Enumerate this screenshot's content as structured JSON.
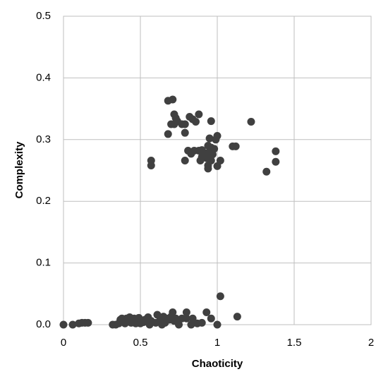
{
  "chart_data": {
    "type": "scatter",
    "x_label": "Chaoticity",
    "y_label": "Complexity",
    "color": "#404040",
    "grid": true,
    "xlim": [
      0,
      2
    ],
    "ylim": [
      0,
      0.5
    ],
    "xticks": [
      0,
      0.5,
      1,
      1.5,
      2
    ],
    "yticks": [
      {
        "value": 0,
        "label": "0.0"
      },
      0.1,
      0.2,
      0.3,
      0.4,
      0.5
    ],
    "x": [
      0.68,
      0.71,
      0.72,
      0.7,
      0.73,
      0.74,
      0.72,
      0.77,
      0.79,
      0.79,
      0.68,
      0.82,
      0.84,
      0.86,
      0.88,
      0.96,
      1.22,
      0.95,
      0.99,
      1.0,
      0.94,
      0.96,
      0.98,
      1.1,
      1.12,
      0.81,
      0.83,
      0.85,
      0.88,
      0.9,
      0.92,
      0.95,
      0.97,
      0.9,
      0.93,
      0.79,
      0.89,
      0.96,
      1.02,
      0.94,
      0.94,
      1.0,
      0.57,
      0.57,
      1.38,
      1.38,
      1.32,
      0,
      0.06,
      0.1,
      0.12,
      0.14,
      0.16,
      0.32,
      0.34,
      0.36,
      0.37,
      0.38,
      0.39,
      0.4,
      0.41,
      0.42,
      0.43,
      0.44,
      0.45,
      0.46,
      0.47,
      0.48,
      0.49,
      0.5,
      0.52,
      0.53,
      0.55,
      0.56,
      0.57,
      0.6,
      0.61,
      0.63,
      0.65,
      0.66,
      0.67,
      0.69,
      0.7,
      0.71,
      0.72,
      0.73,
      0.75,
      0.77,
      0.8,
      0.8,
      0.83,
      0.87,
      0.9,
      0.93,
      0.96,
      1.0,
      1.02,
      1.13,
      0.84,
      0.64
    ],
    "values": [
      0.363,
      0.365,
      0.341,
      0.325,
      0.335,
      0.33,
      0.325,
      0.325,
      0.325,
      0.311,
      0.309,
      0.337,
      0.333,
      0.329,
      0.341,
      0.33,
      0.329,
      0.302,
      0.3,
      0.306,
      0.29,
      0.287,
      0.285,
      0.289,
      0.289,
      0.282,
      0.277,
      0.282,
      0.282,
      0.283,
      0.278,
      0.28,
      0.276,
      0.272,
      0.27,
      0.266,
      0.266,
      0.266,
      0.266,
      0.258,
      0.253,
      0.257,
      0.266,
      0.258,
      0.281,
      0.264,
      0.248,
      0,
      0,
      0.002,
      0.003,
      0.003,
      0.003,
      0,
      0,
      0.002,
      0.008,
      0.01,
      0.005,
      0.002,
      0.01,
      0.005,
      0.012,
      0.003,
      0.008,
      0.01,
      0.002,
      0.006,
      0.011,
      0.002,
      0.004,
      0.008,
      0.012,
      0,
      0.006,
      0.003,
      0.016,
      0.008,
      0.013,
      0.003,
      0.01,
      0.008,
      0.013,
      0.02,
      0.006,
      0.01,
      0,
      0.01,
      0.02,
      0.01,
      0,
      0.002,
      0.003,
      0.02,
      0.01,
      0,
      0.046,
      0.013,
      0.01,
      0
    ]
  }
}
